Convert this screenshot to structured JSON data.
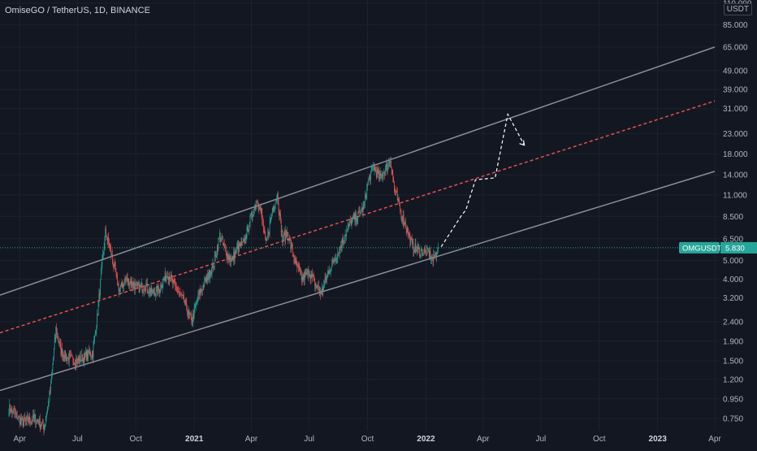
{
  "header": {
    "title": "OmiseGO / TetherUS, 1D, BINANCE",
    "unit": "USDT"
  },
  "price_tag": {
    "symbol": "OMGUSDT",
    "value": "5.830"
  },
  "colors": {
    "background": "#131722",
    "up": "#26a69a",
    "down": "#ef5350",
    "channel": "#8a8d96",
    "midline": "#e05252",
    "projection": "#ffffff",
    "price_line": "#26a69a"
  },
  "chart_data": {
    "type": "candlestick",
    "title": "OmiseGO / TetherUS, 1D, BINANCE",
    "y_scale": "log",
    "y_ticks": [
      "110.000",
      "85.000",
      "65.000",
      "49.000",
      "39.000",
      "31.000",
      "23.000",
      "18.000",
      "14.000",
      "11.000",
      "8.500",
      "6.500",
      "5.000",
      "4.000",
      "3.200",
      "2.400",
      "1.900",
      "1.500",
      "1.200",
      "0.950",
      "0.750"
    ],
    "x_ticks": [
      {
        "label": "Apr",
        "date": "2020-04-01",
        "bold": false
      },
      {
        "label": "Jul",
        "date": "2020-07-01",
        "bold": false
      },
      {
        "label": "Oct",
        "date": "2020-10-01",
        "bold": false
      },
      {
        "label": "2021",
        "date": "2021-01-01",
        "bold": true
      },
      {
        "label": "Apr",
        "date": "2021-04-01",
        "bold": false
      },
      {
        "label": "Jul",
        "date": "2021-07-01",
        "bold": false
      },
      {
        "label": "Oct",
        "date": "2021-10-01",
        "bold": false
      },
      {
        "label": "2022",
        "date": "2022-01-01",
        "bold": true
      },
      {
        "label": "Apr",
        "date": "2022-04-01",
        "bold": false
      },
      {
        "label": "Jul",
        "date": "2022-07-01",
        "bold": false
      },
      {
        "label": "Oct",
        "date": "2022-10-01",
        "bold": false
      },
      {
        "label": "2023",
        "date": "2023-01-01",
        "bold": true
      },
      {
        "label": "Apr",
        "date": "2023-04-01",
        "bold": false
      }
    ],
    "last_price": 5.83,
    "price_path": [
      [
        "2020-03-15",
        0.85
      ],
      [
        "2020-04-05",
        0.72
      ],
      [
        "2020-04-25",
        0.75
      ],
      [
        "2020-05-10",
        0.68
      ],
      [
        "2020-05-20",
        1.1
      ],
      [
        "2020-05-28",
        2.2
      ],
      [
        "2020-06-05",
        1.7
      ],
      [
        "2020-06-15",
        1.55
      ],
      [
        "2020-07-01",
        1.5
      ],
      [
        "2020-07-15",
        1.6
      ],
      [
        "2020-07-25",
        1.65
      ],
      [
        "2020-08-01",
        2.5
      ],
      [
        "2020-08-08",
        4.5
      ],
      [
        "2020-08-14",
        7.0
      ],
      [
        "2020-08-20",
        6.0
      ],
      [
        "2020-08-28",
        4.6
      ],
      [
        "2020-09-05",
        3.5
      ],
      [
        "2020-09-15",
        4.0
      ],
      [
        "2020-09-25",
        3.8
      ],
      [
        "2020-10-05",
        3.6
      ],
      [
        "2020-10-15",
        3.7
      ],
      [
        "2020-10-25",
        3.4
      ],
      [
        "2020-11-05",
        3.5
      ],
      [
        "2020-11-20",
        4.3
      ],
      [
        "2020-12-01",
        3.7
      ],
      [
        "2020-12-15",
        3.1
      ],
      [
        "2020-12-28",
        2.4
      ],
      [
        "2021-01-08",
        3.3
      ],
      [
        "2021-01-20",
        4.0
      ],
      [
        "2021-02-01",
        4.8
      ],
      [
        "2021-02-10",
        6.8
      ],
      [
        "2021-02-20",
        5.5
      ],
      [
        "2021-03-01",
        5.0
      ],
      [
        "2021-03-10",
        5.8
      ],
      [
        "2021-03-20",
        6.2
      ],
      [
        "2021-04-01",
        8.5
      ],
      [
        "2021-04-10",
        10.5
      ],
      [
        "2021-04-16",
        9.0
      ],
      [
        "2021-04-24",
        6.0
      ],
      [
        "2021-05-05",
        9.5
      ],
      [
        "2021-05-12",
        11.0
      ],
      [
        "2021-05-20",
        6.5
      ],
      [
        "2021-05-28",
        7.0
      ],
      [
        "2021-06-08",
        5.0
      ],
      [
        "2021-06-20",
        4.0
      ],
      [
        "2021-07-01",
        4.4
      ],
      [
        "2021-07-10",
        3.8
      ],
      [
        "2021-07-20",
        3.4
      ],
      [
        "2021-08-01",
        4.4
      ],
      [
        "2021-08-15",
        5.5
      ],
      [
        "2021-08-28",
        7.0
      ],
      [
        "2021-09-05",
        8.0
      ],
      [
        "2021-09-15",
        8.5
      ],
      [
        "2021-09-25",
        9.5
      ],
      [
        "2021-10-02",
        13.0
      ],
      [
        "2021-10-10",
        15.5
      ],
      [
        "2021-10-20",
        13.5
      ],
      [
        "2021-10-30",
        15.0
      ],
      [
        "2021-11-06",
        17.0
      ],
      [
        "2021-11-12",
        12.0
      ],
      [
        "2021-11-22",
        9.0
      ],
      [
        "2021-12-01",
        7.5
      ],
      [
        "2021-12-10",
        6.0
      ],
      [
        "2021-12-20",
        5.6
      ],
      [
        "2022-01-05",
        5.5
      ],
      [
        "2022-01-12",
        5.0
      ],
      [
        "2022-01-20",
        5.83
      ]
    ],
    "channel": {
      "upper": [
        [
          "2020-03-01",
          3.3
        ],
        [
          "2023-04-01",
          65.0
        ]
      ],
      "middle": [
        [
          "2020-03-01",
          2.1
        ],
        [
          "2023-04-01",
          34.0
        ]
      ],
      "lower": [
        [
          "2020-03-01",
          1.05
        ],
        [
          "2023-04-01",
          14.6
        ]
      ]
    },
    "projection": [
      [
        "2022-01-25",
        5.9
      ],
      [
        "2022-02-25",
        8.5
      ],
      [
        "2022-03-05",
        9.2
      ],
      [
        "2022-03-20",
        13.2
      ],
      [
        "2022-04-20",
        13.5
      ],
      [
        "2022-05-10",
        29.0
      ],
      [
        "2022-06-05",
        20.0
      ]
    ]
  }
}
